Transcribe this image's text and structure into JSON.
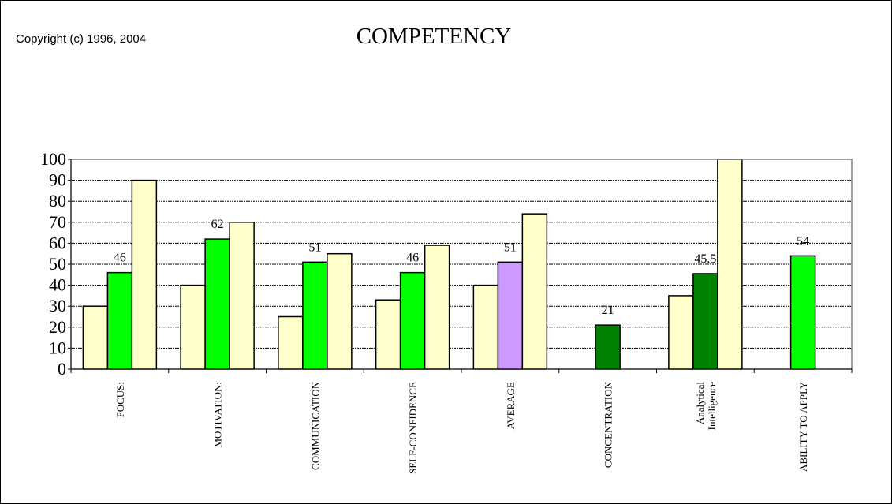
{
  "copyright": "Copyright (c) 1996, 2004",
  "chart_data": {
    "type": "bar",
    "title": "COMPETENCY",
    "xlabel": "",
    "ylabel": "",
    "ylim": [
      0,
      100
    ],
    "yticks": [
      0,
      10,
      20,
      30,
      40,
      50,
      60,
      70,
      80,
      90,
      100
    ],
    "grid": true,
    "categories": [
      [
        "FOCUS:"
      ],
      [
        "MOTIVATION:"
      ],
      [
        "COMMUNICATION"
      ],
      [
        "SELF-CONFIDENCE"
      ],
      [
        "AVERAGE"
      ],
      [
        "CONCENTRATION"
      ],
      [
        "Analytical",
        "Intelligence"
      ],
      [
        "ABILITY TO APPLY"
      ]
    ],
    "groups": [
      {
        "bars": [
          {
            "value": 30,
            "color": "#ffffcc"
          },
          {
            "value": 46,
            "color": "#00ff00",
            "label": "46"
          },
          {
            "value": 90,
            "color": "#ffffcc"
          }
        ]
      },
      {
        "bars": [
          {
            "value": 40,
            "color": "#ffffcc"
          },
          {
            "value": 62,
            "color": "#00ff00",
            "label": "62"
          },
          {
            "value": 70,
            "color": "#ffffcc"
          }
        ]
      },
      {
        "bars": [
          {
            "value": 25,
            "color": "#ffffcc"
          },
          {
            "value": 51,
            "color": "#00ff00",
            "label": "51"
          },
          {
            "value": 55,
            "color": "#ffffcc"
          }
        ]
      },
      {
        "bars": [
          {
            "value": 33,
            "color": "#ffffcc"
          },
          {
            "value": 46,
            "color": "#00ff00",
            "label": "46"
          },
          {
            "value": 59,
            "color": "#ffffcc"
          }
        ]
      },
      {
        "bars": [
          {
            "value": 40,
            "color": "#ffffcc"
          },
          {
            "value": 51,
            "color": "#cc99ff",
            "label": "51"
          },
          {
            "value": 74,
            "color": "#ffffcc"
          }
        ]
      },
      {
        "bars": [
          {
            "value": 21,
            "color": "#008000",
            "label": "21"
          }
        ]
      },
      {
        "bars": [
          {
            "value": 35,
            "color": "#ffffcc"
          },
          {
            "value": 45.5,
            "color": "#008000",
            "label": "45.5"
          },
          {
            "value": 100,
            "color": "#ffffcc"
          }
        ]
      },
      {
        "bars": [
          {
            "value": 54,
            "color": "#00ff00",
            "label": "54"
          }
        ]
      }
    ]
  }
}
